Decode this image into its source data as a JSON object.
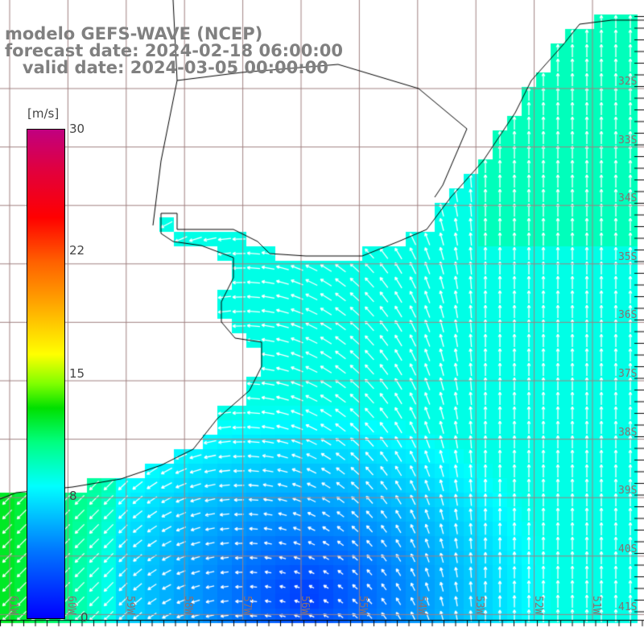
{
  "title": {
    "line1": "modelo GEFS-WAVE (NCEP)",
    "line2": "forecast date: 2024-02-18 06:00:00",
    "line3": "   valid date: 2024-03-05 00:00:00"
  },
  "colorbar": {
    "unit": "[m/s]",
    "ticks": [
      "30",
      "22",
      "15",
      "8",
      "0"
    ],
    "min": 0,
    "max": 30
  },
  "lat_labels": [
    "32S",
    "33S",
    "34S",
    "35S",
    "36S",
    "37S",
    "38S",
    "39S",
    "40S",
    "41S"
  ],
  "lon_labels": [
    "61W",
    "60W",
    "59W",
    "58W",
    "57W",
    "56W",
    "55W",
    "54W",
    "53W",
    "52W",
    "51W"
  ],
  "colors": {
    "land": "#ffffff",
    "grid": "#a08080",
    "coast": "#000000",
    "title": "#808080"
  }
}
